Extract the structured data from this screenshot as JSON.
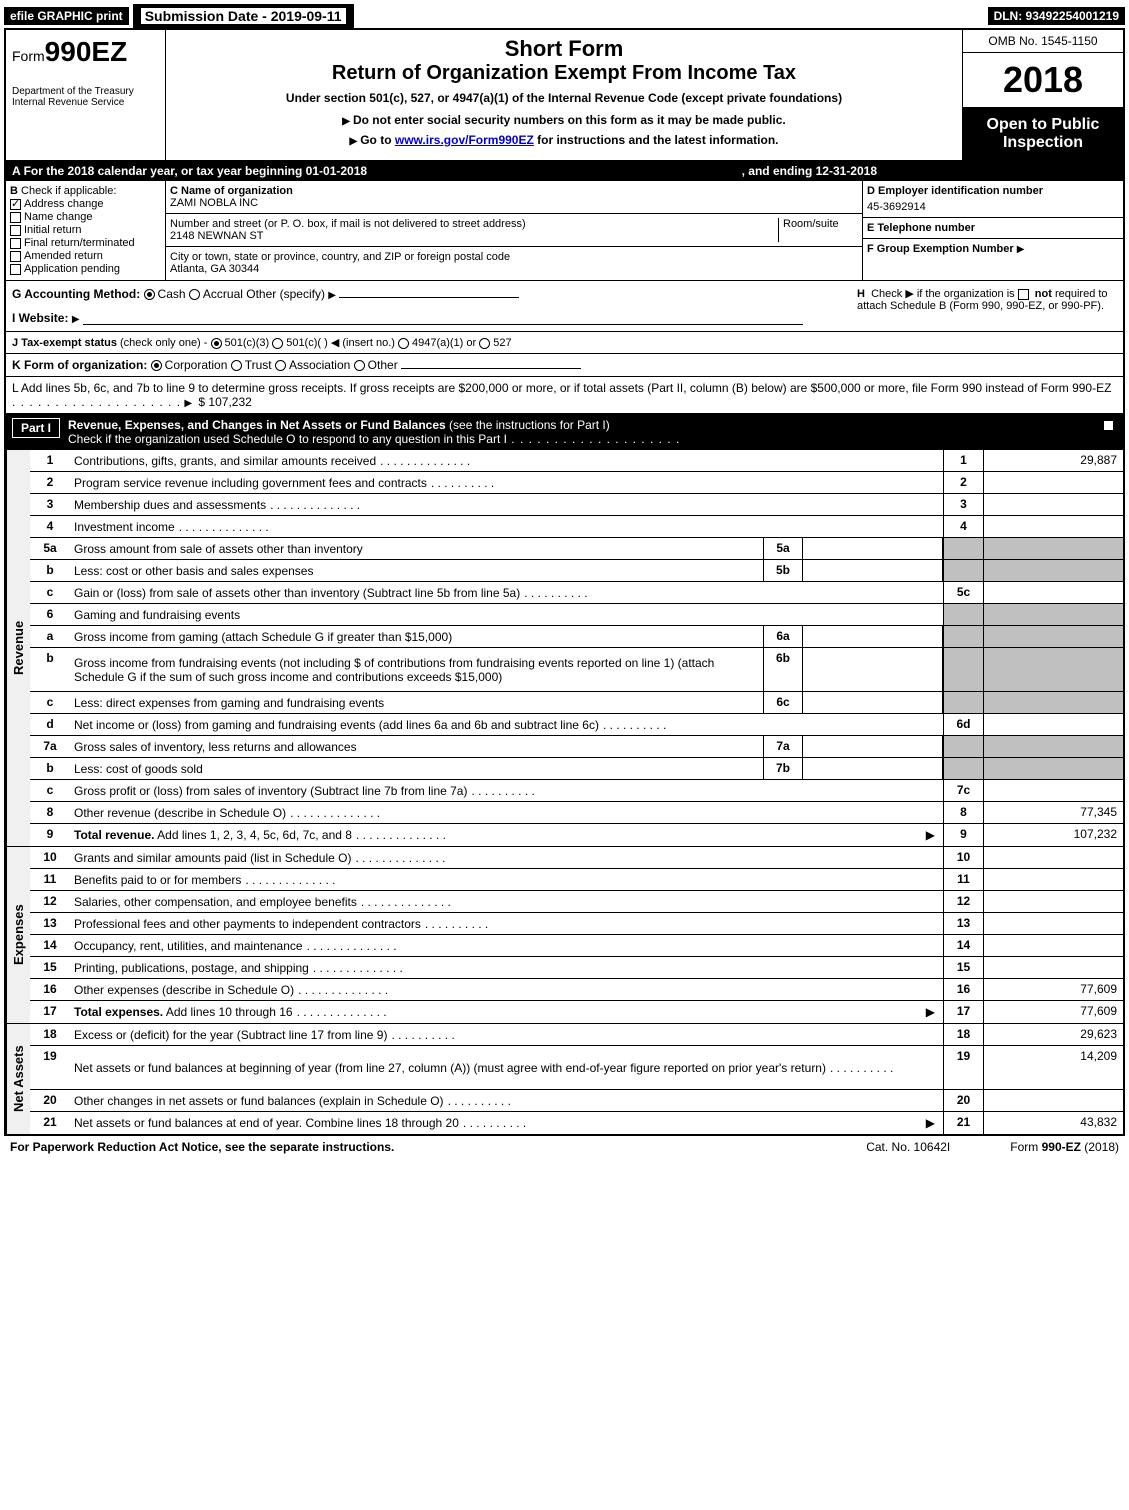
{
  "header": {
    "efile": "efile GRAPHIC print",
    "submission_label": "Submission Date - 2019-09-11",
    "dln": "DLN: 93492254001219"
  },
  "form_id": {
    "prefix": "Form",
    "number": "990EZ",
    "dept1": "Department of the Treasury",
    "dept2": "Internal Revenue Service"
  },
  "title": {
    "short_form": "Short Form",
    "main": "Return of Organization Exempt From Income Tax",
    "under": "Under section 501(c), 527, or 4947(a)(1) of the Internal Revenue Code (except private foundations)",
    "ssn": "Do not enter social security numbers on this form as it may be made public.",
    "goto_pre": "Go to ",
    "goto_link": "www.irs.gov/Form990EZ",
    "goto_post": " for instructions and the latest information."
  },
  "right": {
    "omb": "OMB No. 1545-1150",
    "year": "2018",
    "open": "Open to Public Inspection"
  },
  "line_a": {
    "text": "For the 2018 calendar year, or tax year beginning 01-01-2018",
    "ending": ", and ending 12-31-2018"
  },
  "section_b": {
    "label": "Check if applicable:",
    "items": [
      "Address change",
      "Name change",
      "Initial return",
      "Final return/terminated",
      "Amended return",
      "Application pending"
    ],
    "checked": [
      true,
      false,
      false,
      false,
      false,
      false
    ]
  },
  "section_c": {
    "name_label": "C Name of organization",
    "name": "ZAMI NOBLA INC",
    "addr_label": "Number and street (or P. O. box, if mail is not delivered to street address)",
    "room": "Room/suite",
    "addr": "2148 NEWNAN ST",
    "city_label": "City or town, state or province, country, and ZIP or foreign postal code",
    "city": "Atlanta, GA  30344"
  },
  "section_d": {
    "label": "D Employer identification number",
    "ein": "45-3692914",
    "e_label": "E Telephone number",
    "f_label": "F Group Exemption Number"
  },
  "row_g": {
    "label": "G Accounting Method:",
    "cash": "Cash",
    "accrual": "Accrual",
    "other": "Other (specify)",
    "h_text": "Check ▶  if the organization is ",
    "h_not": "not",
    "h_text2": " required to attach Schedule B (Form 990, 990-EZ, or 990-PF)."
  },
  "row_i": {
    "label": "I Website:"
  },
  "row_j": {
    "label": "J Tax-exempt status",
    "sub": "(check only one) -",
    "opts": [
      "501(c)(3)",
      "501(c)(  )",
      "(insert no.)",
      "4947(a)(1) or",
      "527"
    ]
  },
  "row_k": {
    "label": "K Form of organization:",
    "opts": [
      "Corporation",
      "Trust",
      "Association",
      "Other"
    ]
  },
  "row_l": {
    "text": "L Add lines 5b, 6c, and 7b to line 9 to determine gross receipts. If gross receipts are $200,000 or more, or if total assets (Part II, column (B) below) are $500,000 or more, file Form 990 instead of Form 990-EZ",
    "value": "$ 107,232"
  },
  "part1": {
    "label": "Part I",
    "title": "Revenue, Expenses, and Changes in Net Assets or Fund Balances",
    "sub": " (see the instructions for Part I)",
    "check": "Check if the organization used Schedule O to respond to any question in this Part I"
  },
  "sections": {
    "revenue": "Revenue",
    "expenses": "Expenses",
    "netassets": "Net Assets"
  },
  "lines": [
    {
      "n": "1",
      "d": "Contributions, gifts, grants, and similar amounts received",
      "rn": "1",
      "rv": "29,887"
    },
    {
      "n": "2",
      "d": "Program service revenue including government fees and contracts",
      "rn": "2",
      "rv": ""
    },
    {
      "n": "3",
      "d": "Membership dues and assessments",
      "rn": "3",
      "rv": ""
    },
    {
      "n": "4",
      "d": "Investment income",
      "rn": "4",
      "rv": ""
    },
    {
      "n": "5a",
      "d": "Gross amount from sale of assets other than inventory",
      "mn": "5a",
      "shaded": true
    },
    {
      "n": "b",
      "d": "Less: cost or other basis and sales expenses",
      "mn": "5b",
      "shaded": true
    },
    {
      "n": "c",
      "d": "Gain or (loss) from sale of assets other than inventory (Subtract line 5b from line 5a)",
      "rn": "5c",
      "rv": ""
    },
    {
      "n": "6",
      "d": "Gaming and fundraising events",
      "noboxes": true
    },
    {
      "n": "a",
      "d": "Gross income from gaming (attach Schedule G if greater than $15,000)",
      "mn": "6a",
      "shaded": true
    },
    {
      "n": "b",
      "d": "Gross income from fundraising events (not including $                    of contributions from fundraising events reported on line 1) (attach Schedule G if the sum of such gross income and contributions exceeds $15,000)",
      "mn": "6b",
      "shaded": true,
      "tall": true
    },
    {
      "n": "c",
      "d": "Less: direct expenses from gaming and fundraising events",
      "mn": "6c",
      "shaded": true
    },
    {
      "n": "d",
      "d": "Net income or (loss) from gaming and fundraising events (add lines 6a and 6b and subtract line 6c)",
      "rn": "6d",
      "rv": ""
    },
    {
      "n": "7a",
      "d": "Gross sales of inventory, less returns and allowances",
      "mn": "7a",
      "shaded": true
    },
    {
      "n": "b",
      "d": "Less: cost of goods sold",
      "mn": "7b",
      "shaded": true
    },
    {
      "n": "c",
      "d": "Gross profit or (loss) from sales of inventory (Subtract line 7b from line 7a)",
      "rn": "7c",
      "rv": ""
    },
    {
      "n": "8",
      "d": "Other revenue (describe in Schedule O)",
      "rn": "8",
      "rv": "77,345"
    },
    {
      "n": "9",
      "d": "Total revenue. Add lines 1, 2, 3, 4, 5c, 6d, 7c, and 8",
      "rn": "9",
      "rv": "107,232",
      "bold": true,
      "arrow": true
    }
  ],
  "exp_lines": [
    {
      "n": "10",
      "d": "Grants and similar amounts paid (list in Schedule O)",
      "rn": "10",
      "rv": ""
    },
    {
      "n": "11",
      "d": "Benefits paid to or for members",
      "rn": "11",
      "rv": ""
    },
    {
      "n": "12",
      "d": "Salaries, other compensation, and employee benefits",
      "rn": "12",
      "rv": ""
    },
    {
      "n": "13",
      "d": "Professional fees and other payments to independent contractors",
      "rn": "13",
      "rv": ""
    },
    {
      "n": "14",
      "d": "Occupancy, rent, utilities, and maintenance",
      "rn": "14",
      "rv": ""
    },
    {
      "n": "15",
      "d": "Printing, publications, postage, and shipping",
      "rn": "15",
      "rv": ""
    },
    {
      "n": "16",
      "d": "Other expenses (describe in Schedule O)",
      "rn": "16",
      "rv": "77,609"
    },
    {
      "n": "17",
      "d": "Total expenses. Add lines 10 through 16",
      "rn": "17",
      "rv": "77,609",
      "bold": true,
      "arrow": true
    }
  ],
  "na_lines": [
    {
      "n": "18",
      "d": "Excess or (deficit) for the year (Subtract line 17 from line 9)",
      "rn": "18",
      "rv": "29,623"
    },
    {
      "n": "19",
      "d": "Net assets or fund balances at beginning of year (from line 27, column (A)) (must agree with end-of-year figure reported on prior year's return)",
      "rn": "19",
      "rv": "14,209",
      "tall": true
    },
    {
      "n": "20",
      "d": "Other changes in net assets or fund balances (explain in Schedule O)",
      "rn": "20",
      "rv": ""
    },
    {
      "n": "21",
      "d": "Net assets or fund balances at end of year. Combine lines 18 through 20",
      "rn": "21",
      "rv": "43,832",
      "arrow": true
    }
  ],
  "footer": {
    "pra": "For Paperwork Reduction Act Notice, see the separate instructions.",
    "cat": "Cat. No. 10642I",
    "form": "Form 990-EZ (2018)"
  }
}
